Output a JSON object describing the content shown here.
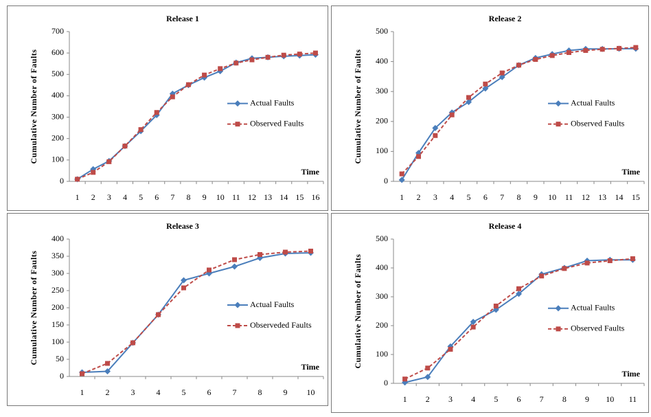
{
  "chart_data": [
    {
      "type": "line",
      "title": "Release 1",
      "x_label": "Time",
      "y_label": "Cumulative Number of Faults",
      "categories": [
        1,
        2,
        3,
        4,
        5,
        6,
        7,
        8,
        9,
        10,
        11,
        12,
        13,
        14,
        15,
        16
      ],
      "series": [
        {
          "name": "Actual Faults",
          "color": "#4a7ebb",
          "linestyle": "solid",
          "marker": "diamond",
          "values": [
            10,
            57,
            95,
            165,
            235,
            310,
            410,
            450,
            485,
            515,
            555,
            575,
            580,
            585,
            588,
            592
          ]
        },
        {
          "name": "Observed  Faults",
          "color": "#be4b48",
          "linestyle": "dashed",
          "marker": "square",
          "values": [
            10,
            42,
            92,
            165,
            242,
            322,
            395,
            452,
            497,
            527,
            553,
            568,
            580,
            590,
            595,
            600
          ]
        }
      ],
      "ylim": [
        0,
        700
      ],
      "yticks": [
        0,
        100,
        200,
        300,
        400,
        500,
        600,
        700
      ]
    },
    {
      "type": "line",
      "title": "Release 2",
      "x_label": "Time",
      "y_label": "Cumulative Number of Faults",
      "categories": [
        1,
        2,
        3,
        4,
        5,
        6,
        7,
        8,
        9,
        10,
        11,
        12,
        13,
        14,
        15
      ],
      "series": [
        {
          "name": "Actual Faults",
          "color": "#4a7ebb",
          "linestyle": "solid",
          "marker": "diamond",
          "values": [
            5,
            95,
            178,
            230,
            265,
            310,
            348,
            388,
            412,
            425,
            437,
            442,
            442,
            443,
            443
          ]
        },
        {
          "name": "Observed Faults",
          "color": "#be4b48",
          "linestyle": "dashed",
          "marker": "square",
          "values": [
            25,
            83,
            153,
            222,
            280,
            325,
            362,
            388,
            407,
            420,
            430,
            437,
            441,
            444,
            447
          ]
        }
      ],
      "ylim": [
        0,
        500
      ],
      "yticks": [
        0,
        100,
        200,
        300,
        400,
        500
      ]
    },
    {
      "type": "line",
      "title": "Release 3",
      "x_label": "Time",
      "y_label": "Cumulative Number of Faults",
      "categories": [
        1,
        2,
        3,
        4,
        5,
        6,
        7,
        8,
        9,
        10
      ],
      "series": [
        {
          "name": "Actual Faults",
          "color": "#4a7ebb",
          "linestyle": "solid",
          "marker": "diamond",
          "values": [
            12,
            15,
            98,
            180,
            280,
            300,
            320,
            345,
            358,
            360
          ]
        },
        {
          "name": "Observeded Faults",
          "color": "#be4b48",
          "linestyle": "dashed",
          "marker": "square",
          "values": [
            8,
            38,
            98,
            180,
            258,
            310,
            340,
            355,
            362,
            365
          ]
        }
      ],
      "ylim": [
        0,
        400
      ],
      "yticks": [
        0,
        50,
        100,
        150,
        200,
        250,
        300,
        350,
        400
      ]
    },
    {
      "type": "line",
      "title": "Release 4",
      "x_label": "Time",
      "y_label": "Cumulative Number of Faults",
      "categories": [
        1,
        2,
        3,
        4,
        5,
        6,
        7,
        8,
        9,
        10,
        11
      ],
      "series": [
        {
          "name": "Actual Faults",
          "color": "#4a7ebb",
          "linestyle": "solid",
          "marker": "diamond",
          "values": [
            3,
            22,
            128,
            213,
            255,
            310,
            378,
            400,
            425,
            428,
            428
          ]
        },
        {
          "name": "Observed Faults",
          "color": "#be4b48",
          "linestyle": "dashed",
          "marker": "square",
          "values": [
            15,
            53,
            118,
            195,
            268,
            328,
            372,
            398,
            417,
            425,
            432
          ]
        }
      ],
      "ylim": [
        0,
        500
      ],
      "yticks": [
        0,
        100,
        200,
        300,
        400,
        500
      ]
    }
  ]
}
